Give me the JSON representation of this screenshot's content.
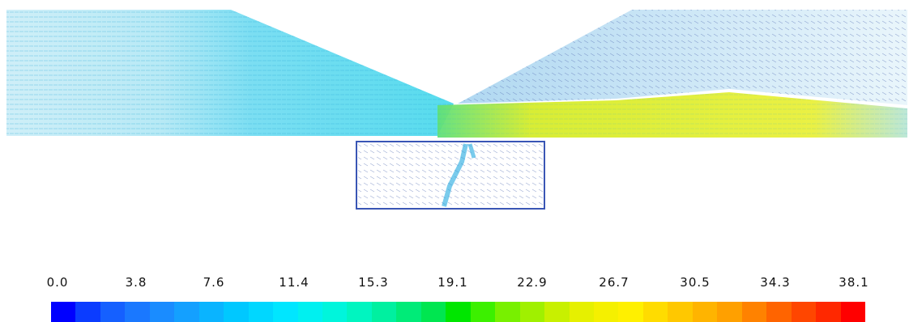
{
  "figure": {
    "description_icon": "velocity-vector-field"
  },
  "legend": {
    "ticks": [
      "0.0",
      "3.8",
      "7.6",
      "11.4",
      "15.3",
      "19.1",
      "22.9",
      "26.7",
      "30.5",
      "34.3",
      "38.1"
    ],
    "colors": [
      "#0000ff",
      "#0b3cff",
      "#1560ff",
      "#1a78ff",
      "#1a8cff",
      "#14a0ff",
      "#0ab4ff",
      "#00c8ff",
      "#00d7ff",
      "#00e6ff",
      "#00f0f0",
      "#00f5dc",
      "#00f5c0",
      "#00f0a0",
      "#00eb78",
      "#00e650",
      "#00e600",
      "#3cf000",
      "#78f000",
      "#a0f000",
      "#c8f000",
      "#e6f000",
      "#f5f000",
      "#fff000",
      "#ffdc00",
      "#ffc800",
      "#ffb400",
      "#ffa000",
      "#ff8200",
      "#ff6400",
      "#ff4600",
      "#ff2800",
      "#ff0000"
    ]
  }
}
